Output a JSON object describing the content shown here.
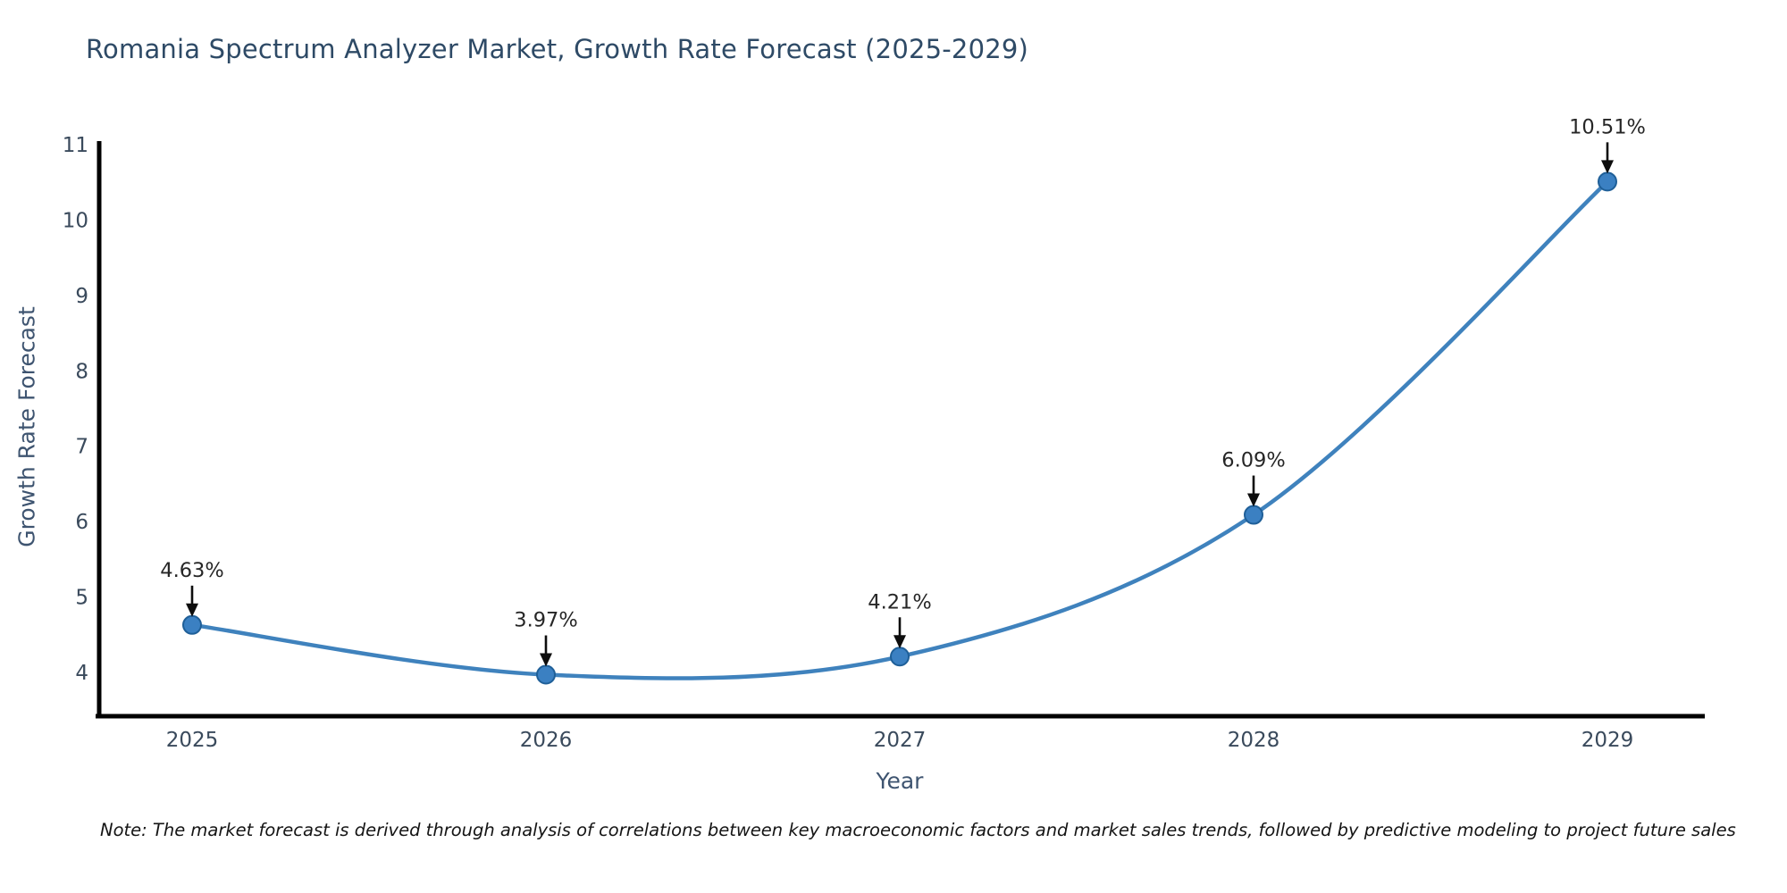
{
  "figure": {
    "title": "Romania Spectrum Analyzer Market, Growth Rate Forecast (2025-2029)",
    "note": "Note: The market forecast is derived through analysis of correlations between key macroeconomic factors and market sales trends, followed by predictive modeling to project future sales"
  },
  "chart_data": {
    "type": "line",
    "title": "Romania Spectrum Analyzer Market, Growth Rate Forecast (2025-2029)",
    "xlabel": "Year",
    "ylabel": "Growth Rate Forecast",
    "categories": [
      "2025",
      "2026",
      "2027",
      "2028",
      "2029"
    ],
    "values": [
      4.63,
      3.97,
      4.21,
      6.09,
      10.51
    ],
    "point_labels": [
      "4.63%",
      "3.97%",
      "4.21%",
      "6.09%",
      "10.51%"
    ],
    "yticks": [
      4,
      5,
      6,
      7,
      8,
      9,
      10,
      11
    ],
    "ylim": [
      3.44,
      11.05
    ],
    "grid": false,
    "legend": false,
    "smooth_curve": true,
    "annotation_style": "label-above-with-down-arrow",
    "colors": {
      "line": "#3f82bd",
      "marker_fill": "#3b80c2",
      "marker_edge": "#1f5f98",
      "annotation_text": "#262626",
      "arrow": "#0d0d0d",
      "axis_spine": "#000000",
      "title": "#2e4a66",
      "tick_label": "#3a4a5c",
      "axis_label": "#3e5470",
      "note_text": "#151515",
      "background": "#ffffff"
    }
  }
}
